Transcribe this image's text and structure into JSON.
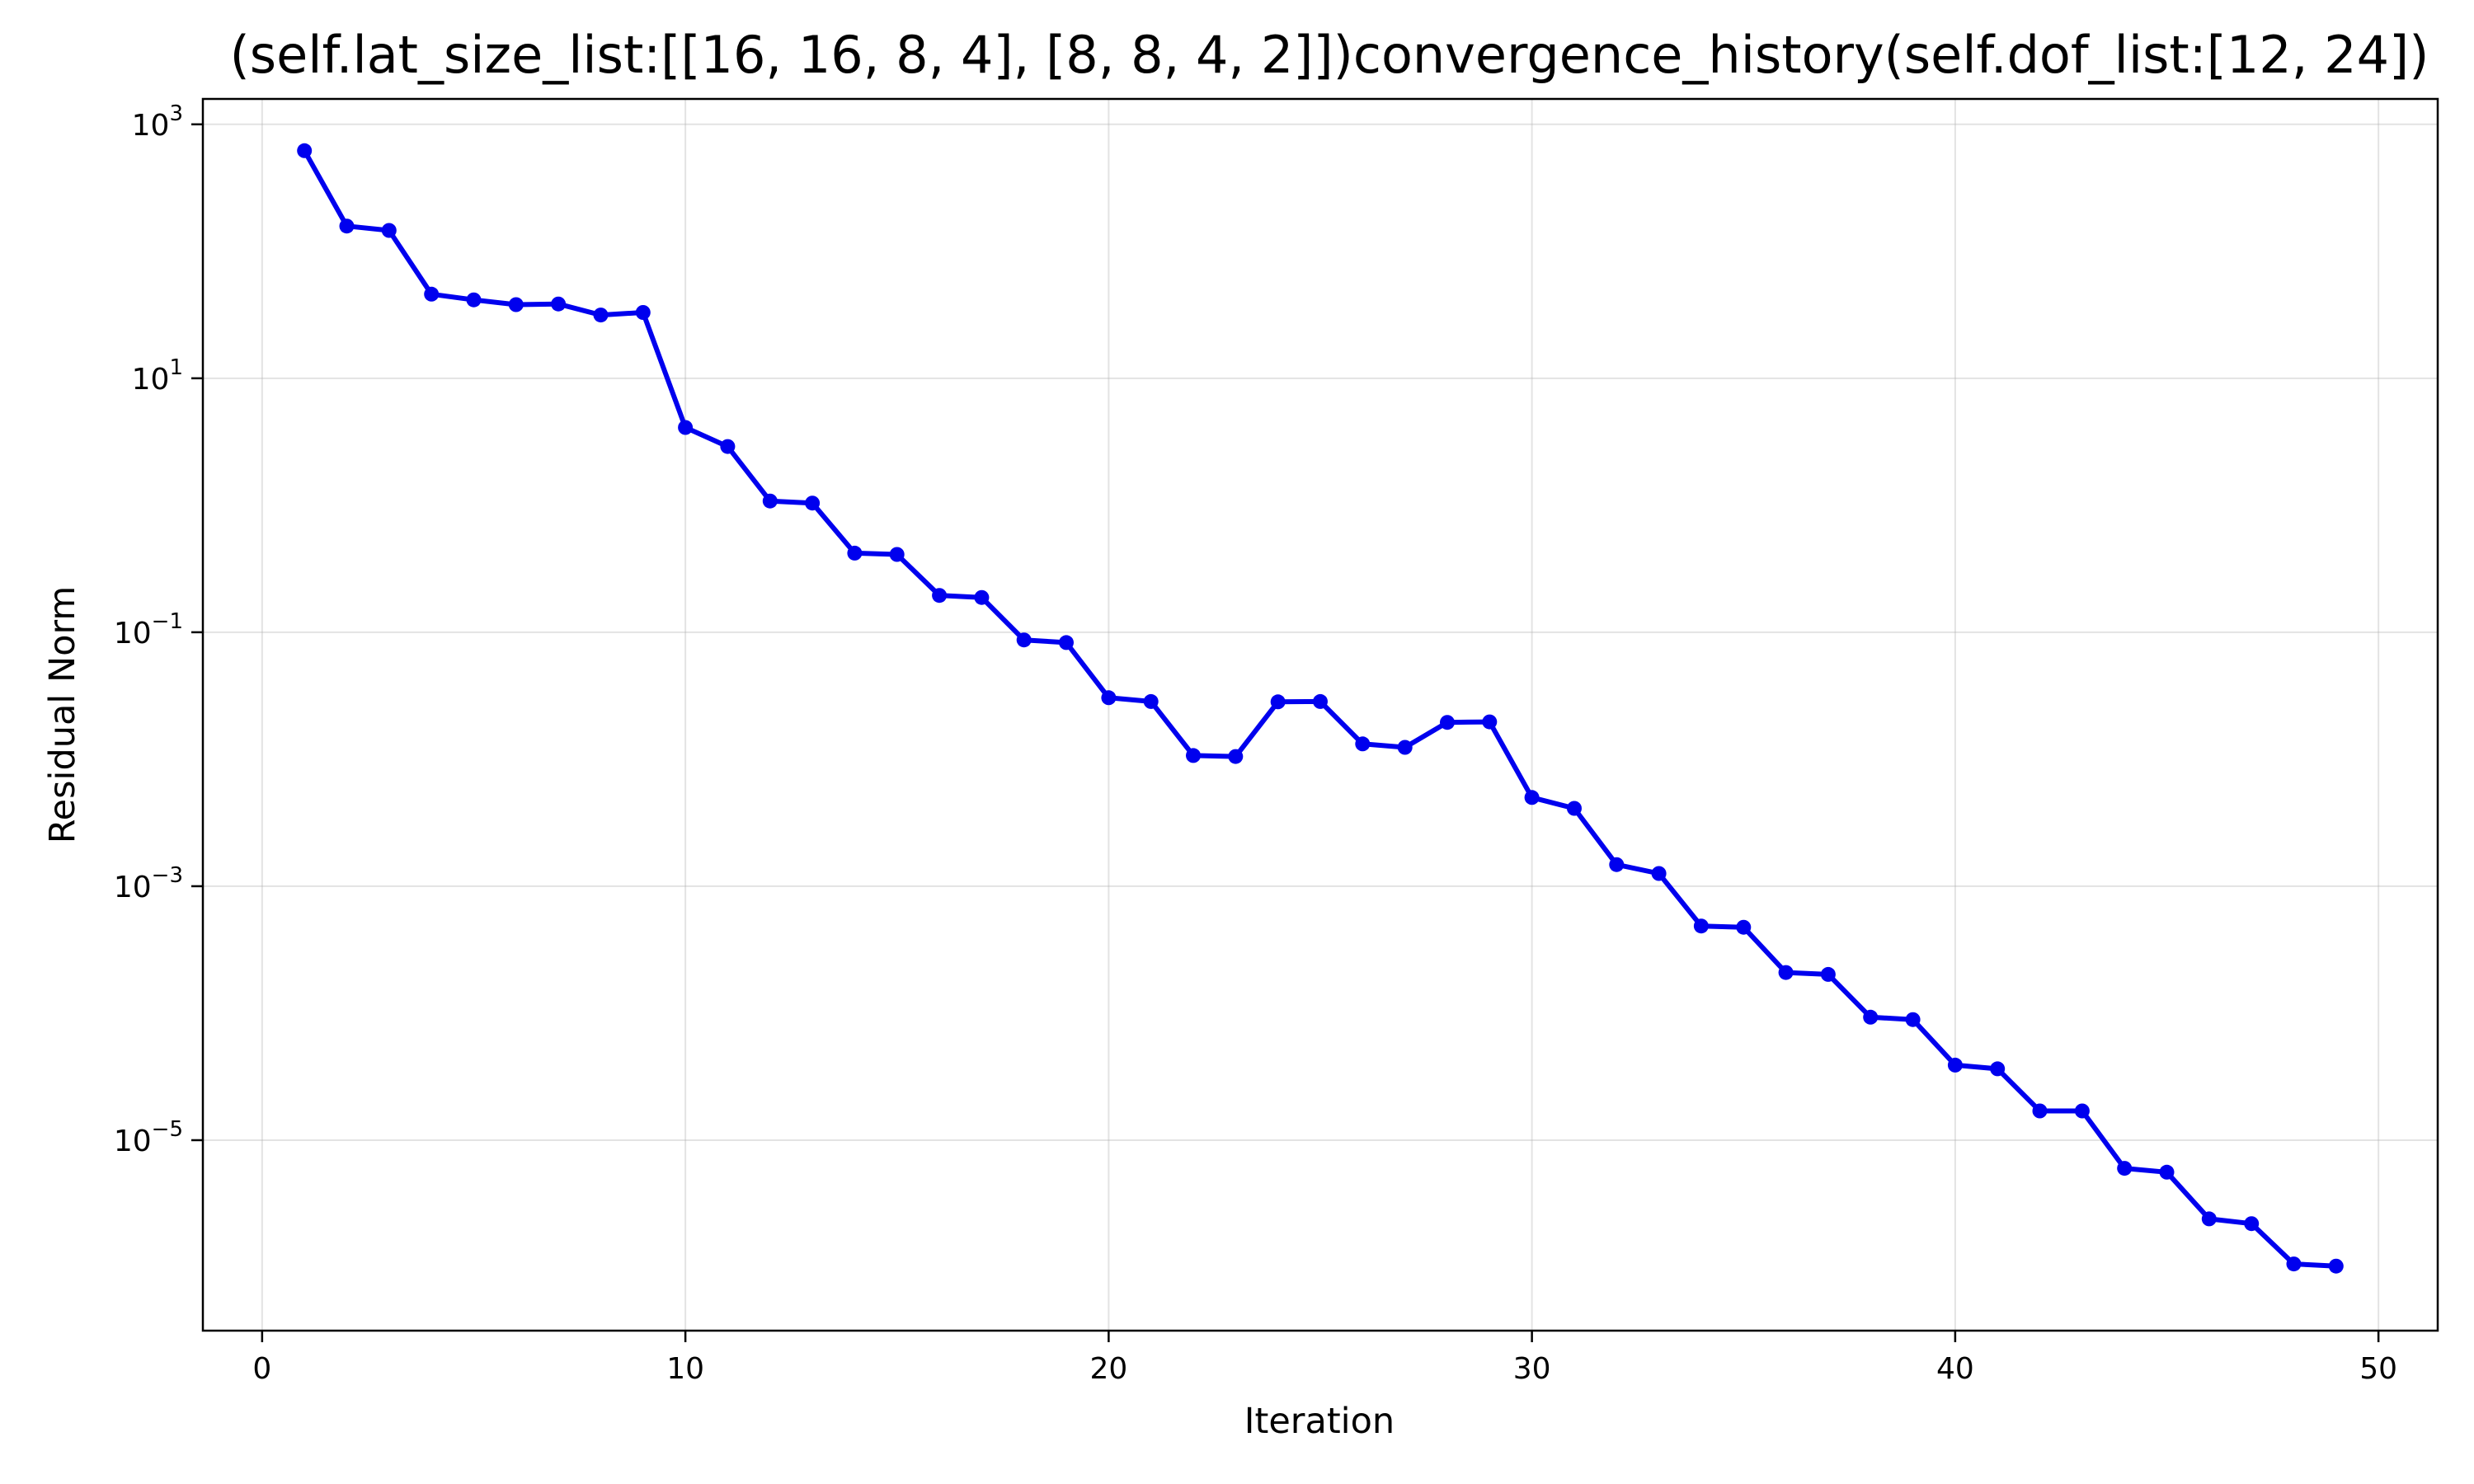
{
  "chart_data": {
    "type": "line",
    "title": "(self.lat_size_list:[[16, 16, 8, 4], [8, 8, 4, 2]])convergence_history(self.dof_list:[12, 24])",
    "xlabel": "Iteration",
    "ylabel": "Residual Norm",
    "xlim": [
      -1.4,
      51.4
    ],
    "ylim_log10": [
      -6.5,
      3.2
    ],
    "y_scale": "log",
    "grid": true,
    "x_ticks": [
      0,
      10,
      20,
      30,
      40,
      50
    ],
    "y_ticks": [
      {
        "exp": 3,
        "base": "10",
        "sup": "3"
      },
      {
        "exp": 1,
        "base": "10",
        "sup": "1"
      },
      {
        "exp": -1,
        "base": "10",
        "sup": "−1"
      },
      {
        "exp": -3,
        "base": "10",
        "sup": "−3"
      },
      {
        "exp": -5,
        "base": "10",
        "sup": "−5"
      }
    ],
    "series": [
      {
        "color": "#0000ee",
        "x": [
          1,
          2,
          3,
          4,
          5,
          6,
          7,
          8,
          9,
          10,
          11,
          12,
          13,
          14,
          15,
          16,
          17,
          18,
          19,
          20,
          21,
          22,
          23,
          24,
          25,
          26,
          27,
          28,
          29,
          30,
          31,
          32,
          33,
          34,
          35,
          36,
          37,
          38,
          39,
          40,
          41,
          42,
          43,
          44,
          45,
          46,
          47,
          48,
          49
        ],
        "y": [
          620,
          158,
          146,
          46,
          41.5,
          38,
          38.5,
          31.5,
          33,
          4.1,
          2.9,
          1.08,
          1.04,
          0.42,
          0.41,
          0.195,
          0.188,
          0.087,
          0.083,
          0.0305,
          0.0285,
          0.0107,
          0.0105,
          0.0283,
          0.0285,
          0.0132,
          0.0124,
          0.0195,
          0.0197,
          0.005,
          0.0041,
          0.00148,
          0.00126,
          0.000486,
          0.000475,
          0.000209,
          0.000202,
          9.3e-05,
          8.9e-05,
          3.9e-05,
          3.65e-05,
          1.7e-05,
          1.7e-05,
          6e-06,
          5.6e-06,
          2.4e-06,
          2.2e-06,
          1.06e-06,
          1.02e-06
        ]
      }
    ]
  }
}
